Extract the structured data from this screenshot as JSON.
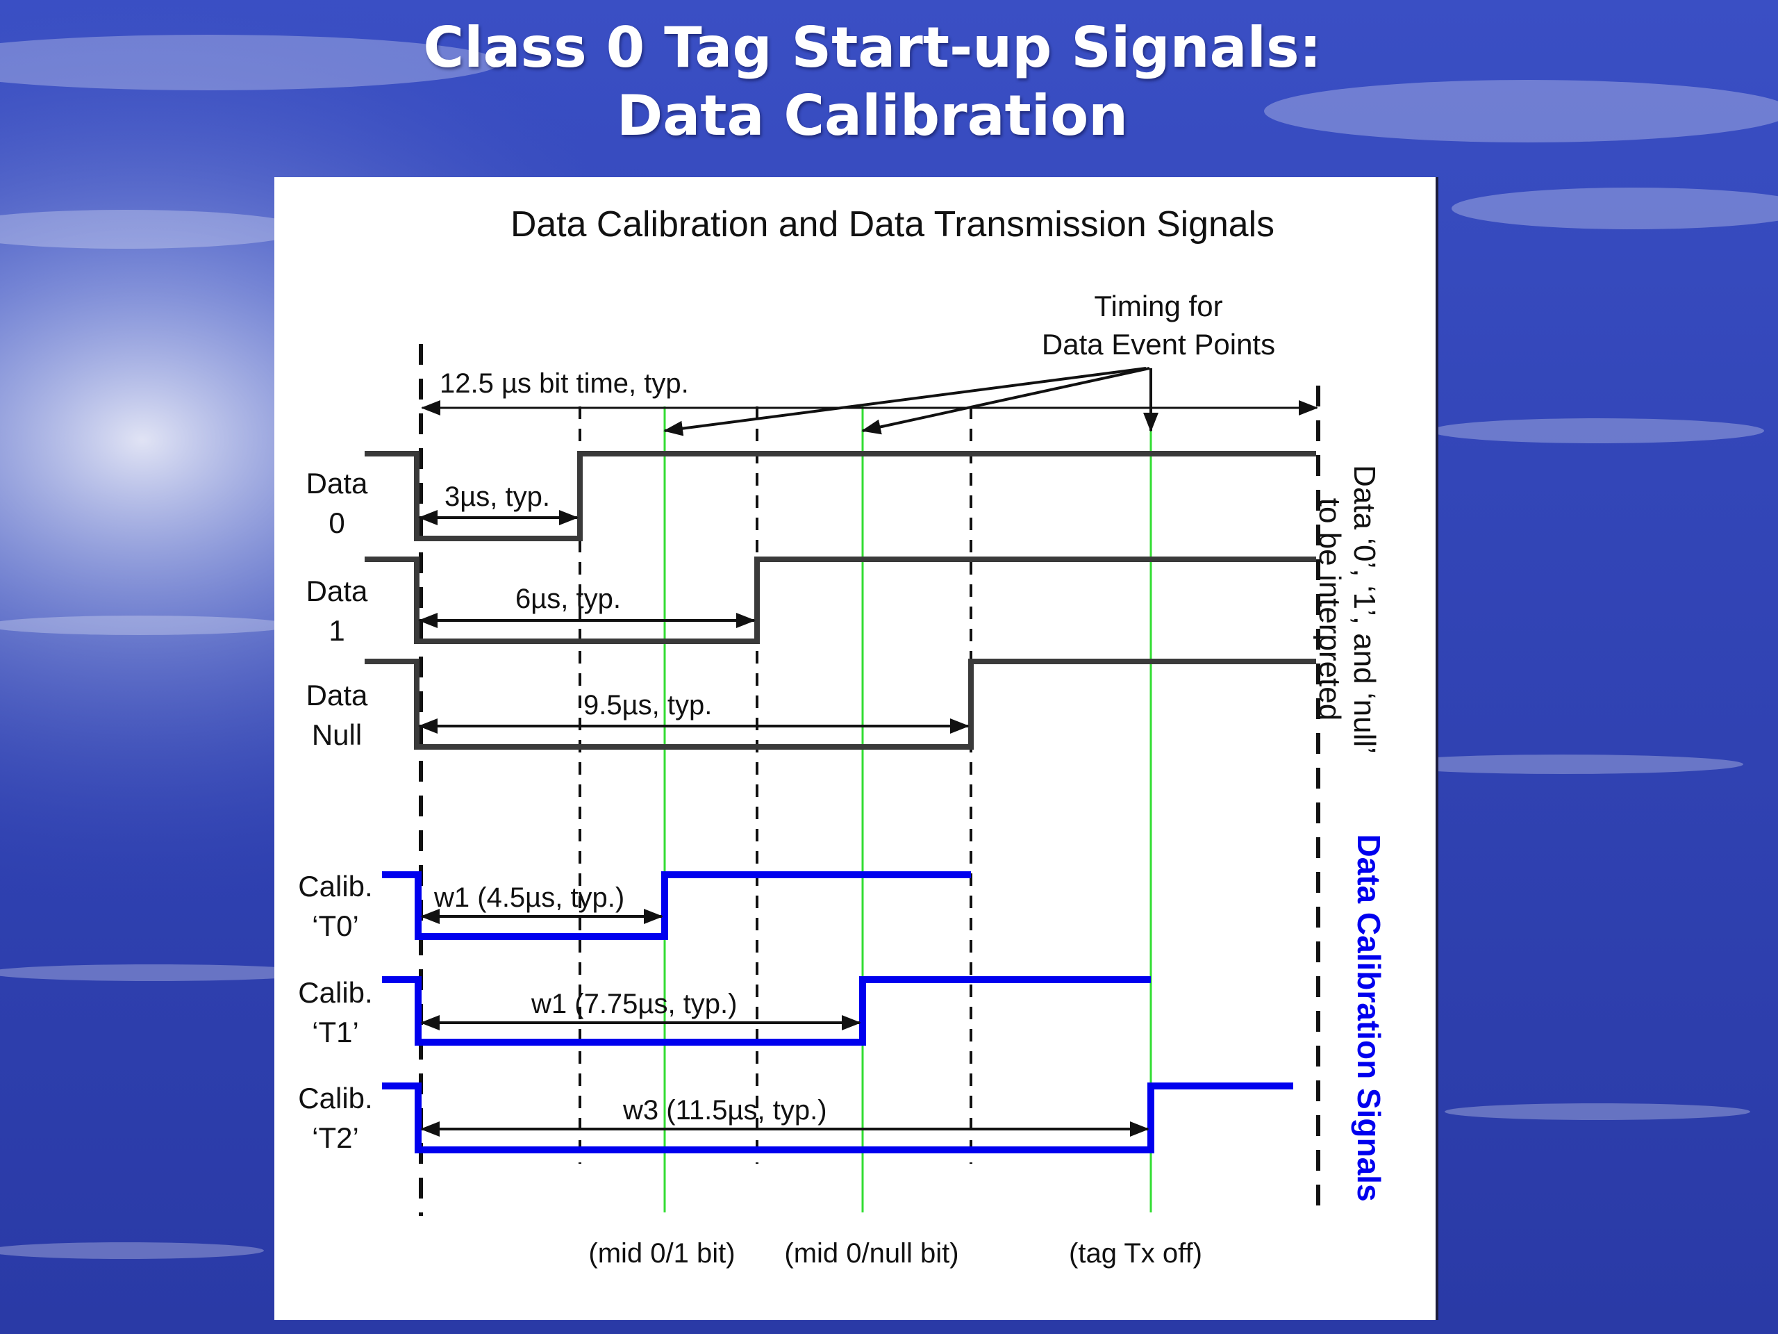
{
  "slide": {
    "title_line1": "Class 0 Tag Start-up Signals:",
    "title_line2": "Data Calibration"
  },
  "diagram": {
    "title": "Data Calibration and Data Transmission Signals",
    "timing_note_line1": "Timing for",
    "timing_note_line2": "Data Event Points",
    "bit_time": "12.5 µs bit time, typ.",
    "data_labels": {
      "data0": [
        "Data",
        "0"
      ],
      "data1": [
        "Data",
        "1"
      ],
      "datanull": [
        "Data",
        "Null"
      ]
    },
    "calib_labels": {
      "t0": [
        "Calib.",
        "‘T0’"
      ],
      "t1": [
        "Calib.",
        "‘T1’"
      ],
      "t2": [
        "Calib.",
        "‘T2’"
      ]
    },
    "widths": {
      "d0": "3µs, typ.",
      "d1": "6µs, typ.",
      "dnull": "9.5µs, typ.",
      "t0": "w1 (4.5µs, typ.)",
      "t1": "w1 (7.75µs, typ.)",
      "t2": "w3 (11.5µs, typ.)"
    },
    "event_labels": {
      "mid01": "(mid 0/1 bit)",
      "mid0null": "(mid 0/null bit)",
      "tagoff": "(tag Tx off)"
    },
    "side_label_data_line1": "Data ‘0’, ‘1’, and ‘null’",
    "side_label_data_line2": "to be interpreted",
    "side_label_calib": "Data Calibration Signals",
    "colors": {
      "data_waveform": "#3a3a3a",
      "calib_waveform": "#0000ee",
      "event_line": "#33dd33",
      "text": "#111111",
      "calib_label": "#0000ee"
    }
  }
}
